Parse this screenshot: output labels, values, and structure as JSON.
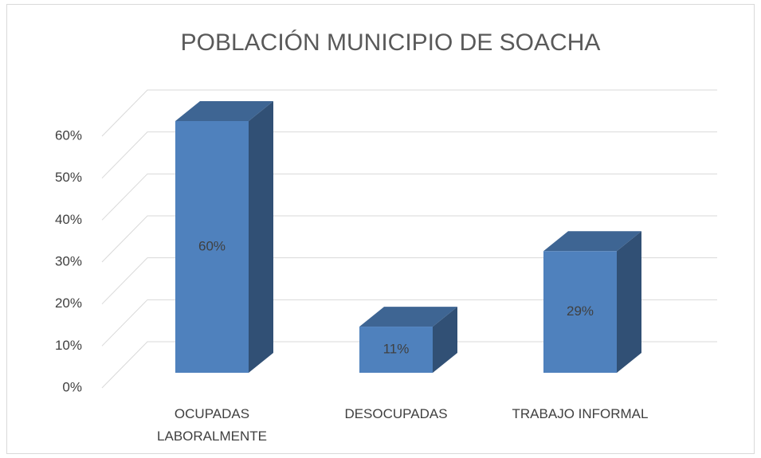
{
  "chart_data": {
    "type": "bar",
    "title": "POBLACIÓN MUNICIPIO DE SOACHA",
    "categories": [
      "OCUPADAS LABORALMENTE",
      "DESOCUPADAS",
      "TRABAJO INFORMAL"
    ],
    "values": [
      60,
      11,
      29
    ],
    "value_labels": [
      "60%",
      "11%",
      "29%"
    ],
    "color": "#4f81bd",
    "ylim": [
      0,
      60
    ],
    "yticks": [
      {
        "value": 0,
        "label": "0%"
      },
      {
        "value": 10,
        "label": "10%"
      },
      {
        "value": 20,
        "label": "20%"
      },
      {
        "value": 30,
        "label": "30%"
      },
      {
        "value": 40,
        "label": "40%"
      },
      {
        "value": 50,
        "label": "50%"
      },
      {
        "value": 60,
        "label": "60%"
      }
    ],
    "grid": true
  }
}
